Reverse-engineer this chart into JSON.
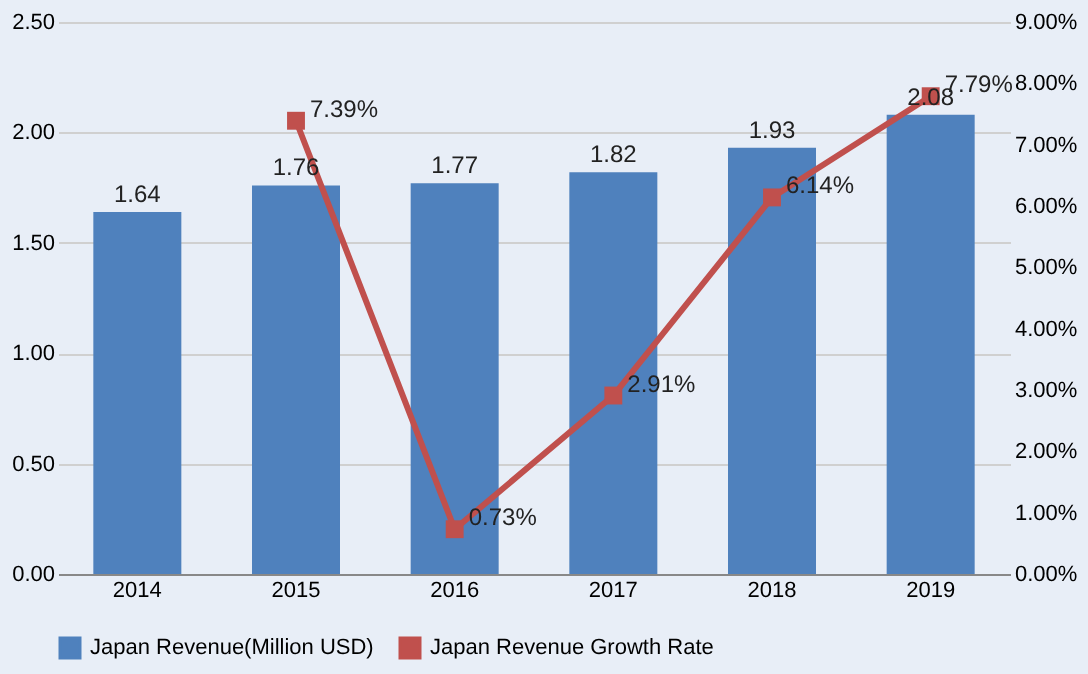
{
  "chart_data": {
    "type": "bar",
    "categories": [
      "2014",
      "2015",
      "2016",
      "2017",
      "2018",
      "2019"
    ],
    "series": [
      {
        "name": "Japan Revenue(Million USD)",
        "color": "#4f81bd",
        "values": [
          1.64,
          1.76,
          1.77,
          1.82,
          1.93,
          2.08
        ],
        "value_labels": [
          "1.64",
          "1.76",
          "1.77",
          "1.82",
          "1.93",
          "2.08"
        ]
      },
      {
        "name": "Japan Revenue Growth Rate",
        "type": "line",
        "axis": "y2",
        "color": "#c0504d",
        "marker": "square",
        "values": [
          null,
          7.39,
          0.73,
          2.91,
          6.14,
          7.79
        ],
        "value_labels": [
          null,
          "7.39%",
          "0.73%",
          "2.91%",
          "6.14%",
          "7.79%"
        ]
      }
    ],
    "ylim": [
      0,
      2.5
    ],
    "yticks": [
      {
        "value": 0,
        "label": "0.00"
      },
      {
        "value": 0.5,
        "label": "0.50"
      },
      {
        "value": 1,
        "label": "1.00"
      },
      {
        "value": 1.5,
        "label": "1.50"
      },
      {
        "value": 2,
        "label": "2.00"
      },
      {
        "value": 2.5,
        "label": "2.50"
      }
    ],
    "y2lim": [
      0,
      9
    ],
    "y2ticks": [
      {
        "value": 0,
        "label": "0.00%"
      },
      {
        "value": 1,
        "label": "1.00%"
      },
      {
        "value": 2,
        "label": "2.00%"
      },
      {
        "value": 3,
        "label": "3.00%"
      },
      {
        "value": 4,
        "label": "4.00%"
      },
      {
        "value": 5,
        "label": "5.00%"
      },
      {
        "value": 6,
        "label": "6.00%"
      },
      {
        "value": 7,
        "label": "7.00%"
      },
      {
        "value": 8,
        "label": "8.00%"
      },
      {
        "value": 9,
        "label": "9.00%"
      }
    ],
    "grid": "y",
    "legend": "bottom"
  }
}
